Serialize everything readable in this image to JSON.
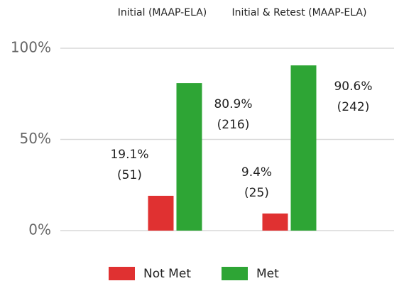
{
  "chart_data": {
    "type": "bar",
    "categories": [
      "Initial (MAAP-ELA)",
      "Initial & Retest (MAAP-ELA)"
    ],
    "series": [
      {
        "name": "Not Met",
        "color": "#e03131",
        "values": [
          19.1,
          9.4
        ],
        "value_labels": [
          "19.1%",
          "9.4%"
        ],
        "count_labels": [
          "(51)",
          "(25)"
        ]
      },
      {
        "name": "Met",
        "color": "#2ea535",
        "values": [
          80.9,
          90.6
        ],
        "value_labels": [
          "80.9%",
          "90.6%"
        ],
        "count_labels": [
          "(216)",
          "(242)"
        ]
      }
    ],
    "ylim": [
      0,
      100
    ],
    "yticks": [
      {
        "value": 0,
        "label": "0%"
      },
      {
        "value": 50,
        "label": "50%"
      },
      {
        "value": 100,
        "label": "100%"
      }
    ],
    "grid": true,
    "legend": "bottom"
  }
}
